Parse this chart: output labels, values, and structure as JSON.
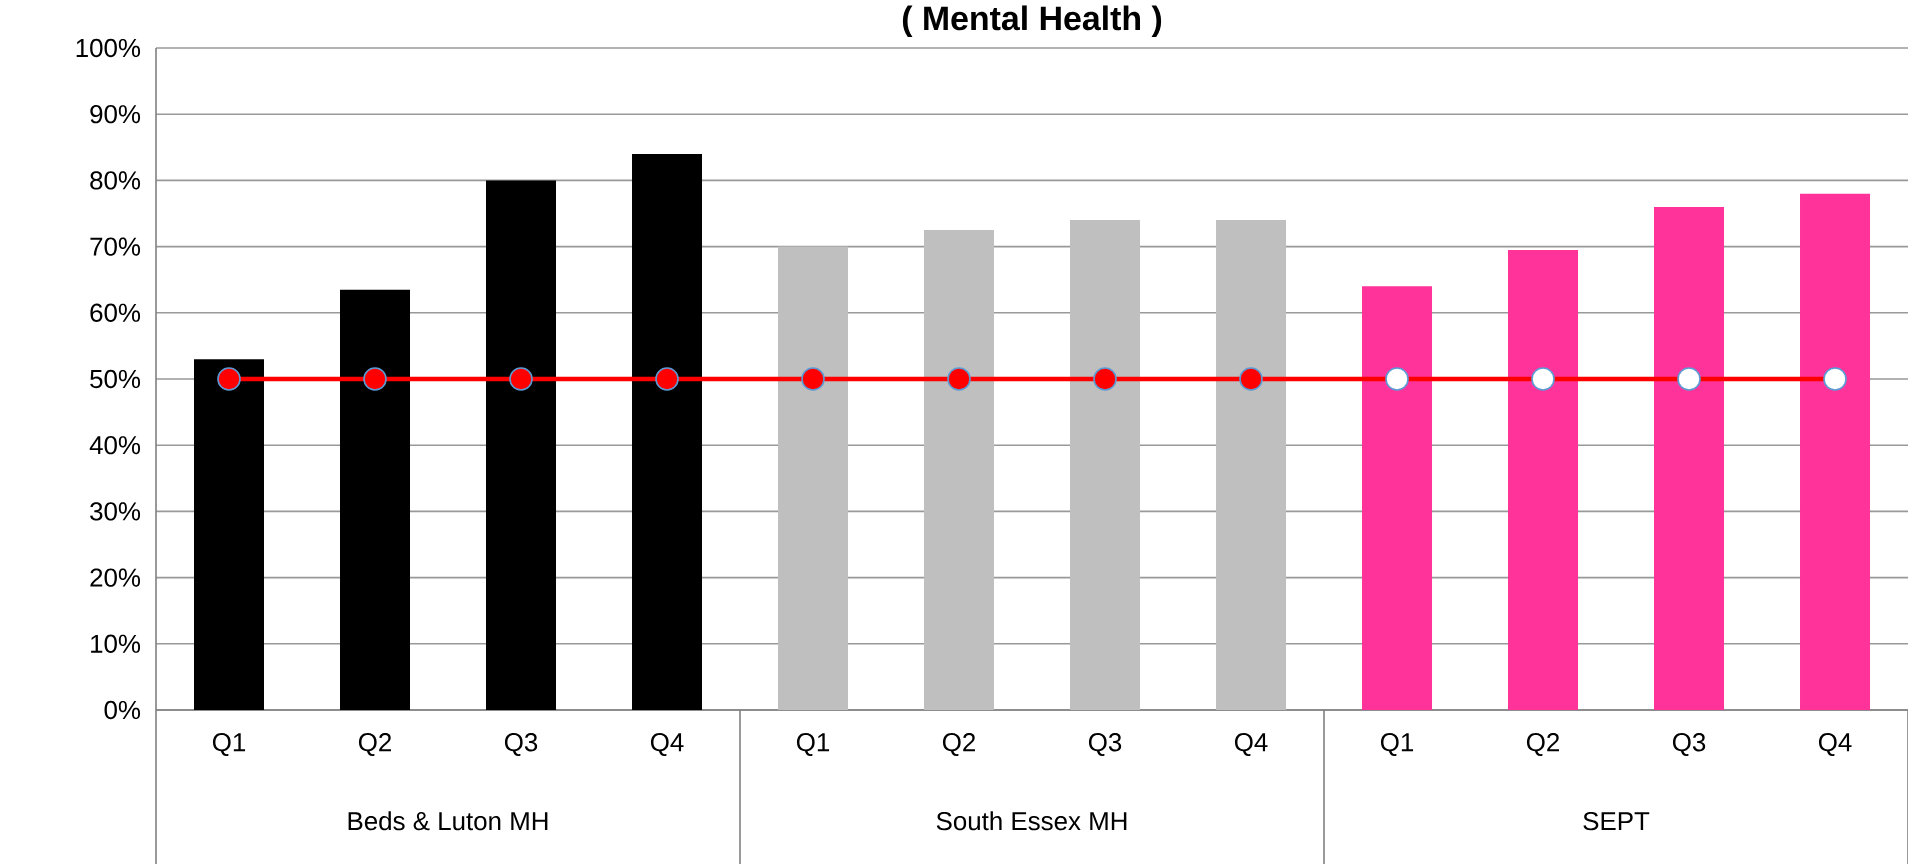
{
  "chart_data": {
    "type": "bar",
    "title": "( Mental Health )",
    "categories": [
      "Q1",
      "Q2",
      "Q3",
      "Q4",
      "Q1",
      "Q2",
      "Q3",
      "Q4",
      "Q1",
      "Q2",
      "Q3",
      "Q4"
    ],
    "series": [
      {
        "colors": [
          "#000000",
          "#000000",
          "#000000",
          "#000000",
          "#bfbfbf",
          "#bfbfbf",
          "#bfbfbf",
          "#bfbfbf",
          "#ff3399",
          "#ff3399",
          "#ff3399",
          "#ff3399"
        ],
        "values": [
          53,
          63.5,
          80,
          84,
          70,
          72.5,
          74,
          74,
          64,
          69.5,
          76,
          78
        ]
      },
      {
        "type": "line",
        "color": "#ff0000",
        "marker": "circle",
        "line_style": "solid",
        "colors": [
          "#ff0000",
          "#ff0000",
          "#ff0000",
          "#ff0000",
          "#ff0000",
          "#ff0000",
          "#ff0000",
          "#ff0000",
          "#ffffff",
          "#ffffff",
          "#ffffff",
          "#ffffff"
        ],
        "values": [
          50,
          50,
          50,
          50,
          50,
          50,
          50,
          50,
          50,
          50,
          50,
          50
        ]
      }
    ],
    "annotations": [
      "Beds & Luton MH",
      "South  Essex MH",
      "SEPT"
    ],
    "ylim": [
      0,
      100
    ],
    "yticks": [
      {
        "value": 0,
        "label": "0%"
      },
      {
        "value": 10,
        "label": "10%"
      },
      {
        "value": 20,
        "label": "20%"
      },
      {
        "value": 30,
        "label": "30%"
      },
      {
        "value": 40,
        "label": "40%"
      },
      {
        "value": 50,
        "label": "50%"
      },
      {
        "value": 60,
        "label": "60%"
      },
      {
        "value": 70,
        "label": "70%"
      },
      {
        "value": 80,
        "label": "80%"
      },
      {
        "value": 90,
        "label": "90%"
      },
      {
        "value": 100,
        "label": "100%"
      }
    ],
    "grid": "y"
  }
}
